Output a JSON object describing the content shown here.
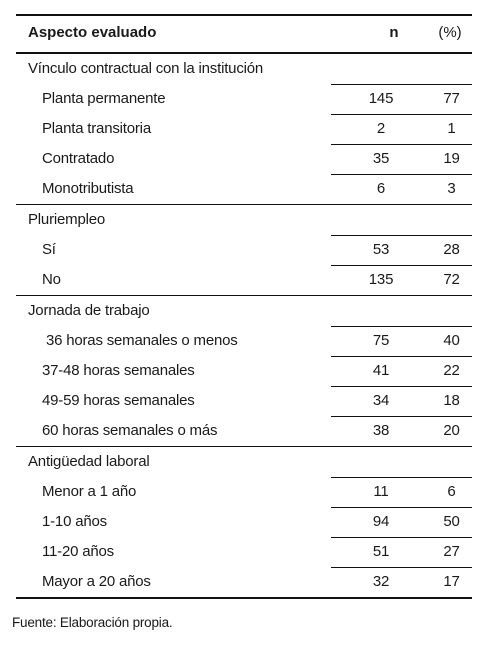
{
  "header": {
    "aspect": "Aspecto evaluado",
    "n": "n",
    "pct": "(%)"
  },
  "groups": [
    {
      "title": "Vínculo contractual con la institución",
      "rows": [
        {
          "label": "Planta permanente",
          "n": "145",
          "pct": "77"
        },
        {
          "label": "Planta transitoria",
          "n": "2",
          "pct": "1"
        },
        {
          "label": "Contratado",
          "n": "35",
          "pct": "19"
        },
        {
          "label": "Monotributista",
          "n": "6",
          "pct": "3"
        }
      ]
    },
    {
      "title": "Pluriempleo",
      "rows": [
        {
          "label": "Sí",
          "n": "53",
          "pct": "28"
        },
        {
          "label": "No",
          "n": "135",
          "pct": "72"
        }
      ]
    },
    {
      "title": "Jornada de trabajo",
      "rows": [
        {
          "label": " 36 horas semanales o menos",
          "n": "75",
          "pct": "40"
        },
        {
          "label": "37-48 horas semanales",
          "n": "41",
          "pct": "22"
        },
        {
          "label": "49-59 horas semanales",
          "n": "34",
          "pct": "18"
        },
        {
          "label": "60 horas semanales o más",
          "n": "38",
          "pct": "20"
        }
      ]
    },
    {
      "title": "Antigüedad laboral",
      "rows": [
        {
          "label": "Menor a 1 año",
          "n": "11",
          "pct": "6"
        },
        {
          "label": "1-10 años",
          "n": "94",
          "pct": "50"
        },
        {
          "label": "11-20 años",
          "n": "51",
          "pct": "27"
        },
        {
          "label": "Mayor a 20 años",
          "n": "32",
          "pct": "17"
        }
      ]
    }
  ],
  "source": "Fuente: Elaboración propia."
}
